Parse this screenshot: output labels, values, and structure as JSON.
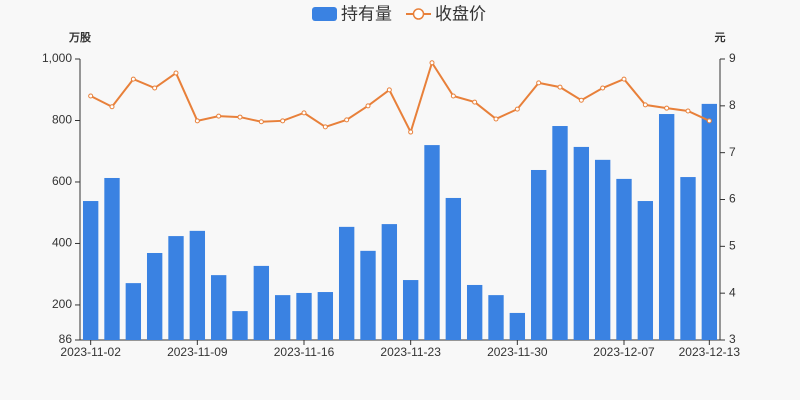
{
  "chart_data": {
    "type": "bar-line",
    "y_label": "万股",
    "y2_label": "元",
    "categories": [
      "2023-11-02",
      null,
      null,
      null,
      null,
      "2023-11-09",
      null,
      null,
      null,
      null,
      "2023-11-16",
      null,
      null,
      null,
      null,
      "2023-11-23",
      null,
      null,
      null,
      null,
      "2023-11-30",
      null,
      null,
      null,
      null,
      "2023-12-07",
      null,
      null,
      null,
      "2023-12-13"
    ],
    "series": [
      {
        "name": "持有量",
        "type": "bar",
        "color": "#3a82e2",
        "values": [
          538,
          613,
          271,
          369,
          424,
          441,
          297,
          180,
          327,
          232,
          239,
          242,
          454,
          376,
          463,
          281,
          720,
          548,
          265,
          232,
          174,
          639,
          782,
          714,
          672,
          610,
          538,
          821,
          616,
          854
        ]
      },
      {
        "name": "收盘价",
        "type": "line",
        "axis": "y2",
        "color": "#e8803a",
        "values": [
          8.21,
          7.98,
          8.57,
          8.38,
          8.7,
          7.68,
          7.78,
          7.76,
          7.66,
          7.68,
          7.85,
          7.55,
          7.7,
          8.0,
          8.34,
          7.44,
          8.92,
          8.21,
          8.08,
          7.72,
          7.93,
          8.49,
          8.4,
          8.12,
          8.38,
          8.57,
          8.02,
          7.95,
          7.89,
          7.68
        ]
      }
    ],
    "ylim": [
      86,
      1000
    ],
    "yticks": [
      86,
      200,
      400,
      600,
      800,
      {
        "value": 1000,
        "label": "1,000"
      }
    ],
    "y2lim": [
      3,
      9
    ],
    "y2ticks": [
      3,
      4,
      5,
      6,
      7,
      8,
      9
    ]
  }
}
